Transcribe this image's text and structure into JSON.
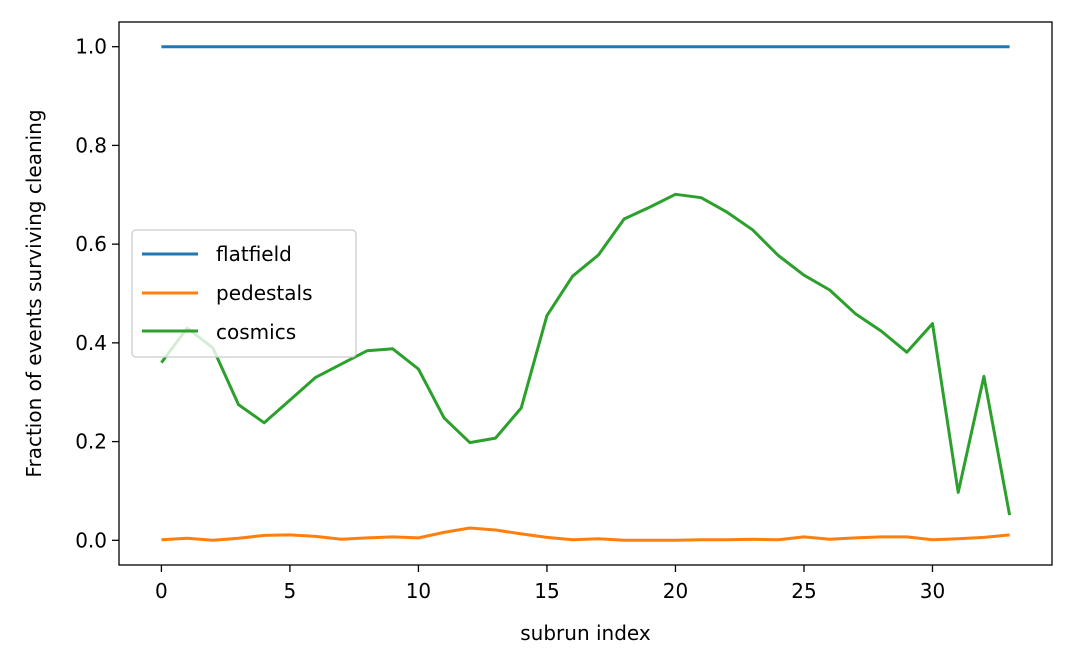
{
  "chart_data": {
    "type": "line",
    "title": "",
    "xlabel": "subrun index",
    "ylabel": "Fraction of events surviving cleaning",
    "xlim": [
      -1.65,
      34.65
    ],
    "ylim": [
      -0.05,
      1.05
    ],
    "xticks": [
      0,
      5,
      10,
      15,
      20,
      25,
      30
    ],
    "xtick_labels": [
      "0",
      "5",
      "10",
      "15",
      "20",
      "25",
      "30"
    ],
    "yticks": [
      0.0,
      0.2,
      0.4,
      0.6,
      0.8,
      1.0
    ],
    "ytick_labels": [
      "0.0",
      "0.2",
      "0.4",
      "0.6",
      "0.8",
      "1.0"
    ],
    "grid": false,
    "legend_position": "center-left",
    "x": [
      0,
      1,
      2,
      3,
      4,
      5,
      6,
      7,
      8,
      9,
      10,
      11,
      12,
      13,
      14,
      15,
      16,
      17,
      18,
      19,
      20,
      21,
      22,
      23,
      24,
      25,
      26,
      27,
      28,
      29,
      30,
      31,
      32,
      33
    ],
    "series": [
      {
        "name": "flatfield",
        "color": "#1f77b4",
        "values": [
          1.0,
          1.0,
          1.0,
          1.0,
          1.0,
          1.0,
          1.0,
          1.0,
          1.0,
          1.0,
          1.0,
          1.0,
          1.0,
          1.0,
          1.0,
          1.0,
          1.0,
          1.0,
          1.0,
          1.0,
          1.0,
          1.0,
          1.0,
          1.0,
          1.0,
          1.0,
          1.0,
          1.0,
          1.0,
          1.0,
          1.0,
          1.0,
          1.0,
          1.0
        ]
      },
      {
        "name": "pedestals",
        "color": "#ff7f0e",
        "values": [
          0.001,
          0.004,
          0.0,
          0.004,
          0.01,
          0.011,
          0.008,
          0.002,
          0.005,
          0.007,
          0.005,
          0.016,
          0.025,
          0.021,
          0.013,
          0.006,
          0.001,
          0.003,
          0.0,
          0.0,
          0.0,
          0.001,
          0.001,
          0.002,
          0.001,
          0.007,
          0.002,
          0.005,
          0.007,
          0.007,
          0.001,
          0.003,
          0.006,
          0.011
        ]
      },
      {
        "name": "cosmics",
        "color": "#2ca02c",
        "values": [
          0.36,
          0.43,
          0.39,
          0.275,
          0.238,
          0.284,
          0.33,
          0.357,
          0.384,
          0.388,
          0.347,
          0.248,
          0.198,
          0.207,
          0.268,
          0.455,
          0.535,
          0.578,
          0.651,
          0.675,
          0.701,
          0.694,
          0.665,
          0.629,
          0.577,
          0.537,
          0.507,
          0.459,
          0.424,
          0.381,
          0.439,
          0.097,
          0.332,
          0.051
        ]
      }
    ]
  }
}
